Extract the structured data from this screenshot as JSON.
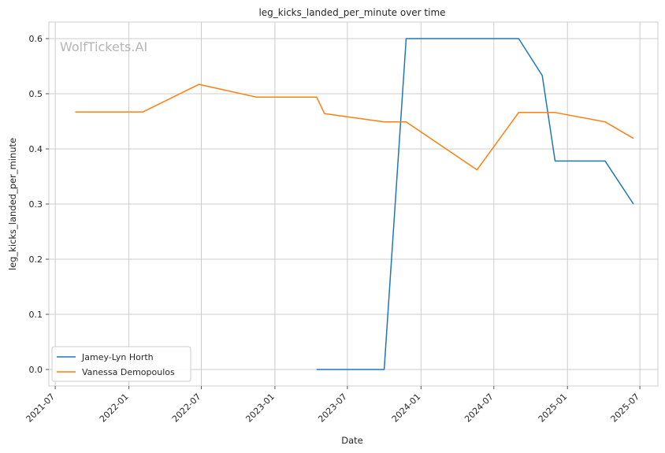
{
  "chart_data": {
    "type": "line",
    "title": "leg_kicks_landed_per_minute over time",
    "xlabel": "Date",
    "ylabel": "leg_kicks_landed_per_minute",
    "watermark": "WolfTickets.AI",
    "xlim": [
      "2021-06-15",
      "2025-08-15"
    ],
    "ylim": [
      -0.03,
      0.63
    ],
    "x_ticks": [
      "2021-07",
      "2022-01",
      "2022-07",
      "2023-01",
      "2023-07",
      "2024-01",
      "2024-07",
      "2025-01",
      "2025-07"
    ],
    "y_ticks": [
      "0.0",
      "0.1",
      "0.2",
      "0.3",
      "0.4",
      "0.5",
      "0.6"
    ],
    "grid": true,
    "legend_position": "bottom-left",
    "colors": {
      "series0": "#1f77b4",
      "series1": "#ff7f0e",
      "grid": "#cccccc"
    },
    "series": [
      {
        "name": "Jamey-Lyn Horth",
        "x": [
          "2023-04-15",
          "2023-10-01",
          "2023-11-25",
          "2024-09-01",
          "2024-10-30",
          "2024-12-01",
          "2025-04-05",
          "2025-06-15"
        ],
        "y": [
          0.0,
          0.0,
          0.6,
          0.6,
          0.533,
          0.378,
          0.378,
          0.3
        ]
      },
      {
        "name": "Vanessa Demopoulos",
        "x": [
          "2021-08-20",
          "2022-02-05",
          "2022-06-25",
          "2022-11-15",
          "2023-04-15",
          "2023-05-05",
          "2023-10-01",
          "2023-11-25",
          "2024-05-20",
          "2024-09-01",
          "2024-12-01",
          "2025-04-05",
          "2025-06-15"
        ],
        "y": [
          0.467,
          0.467,
          0.517,
          0.494,
          0.494,
          0.464,
          0.449,
          0.449,
          0.362,
          0.466,
          0.466,
          0.449,
          0.419
        ]
      }
    ]
  }
}
